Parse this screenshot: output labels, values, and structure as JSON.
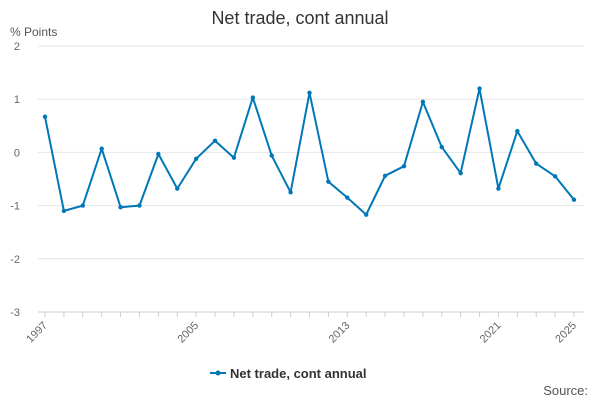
{
  "chart_data": {
    "type": "line",
    "title": "Net trade, cont annual",
    "ylabel": "% Points",
    "xlabel": "",
    "x": [
      1997,
      1998,
      1999,
      2000,
      2001,
      2002,
      2003,
      2004,
      2005,
      2006,
      2007,
      2008,
      2009,
      2010,
      2011,
      2012,
      2013,
      2014,
      2015,
      2016,
      2017,
      2018,
      2019,
      2020,
      2021,
      2022,
      2023,
      2024,
      2025
    ],
    "x_tick_labels": [
      "1997",
      "2005",
      "2013",
      "2021",
      "2025"
    ],
    "ylim": [
      -3,
      2
    ],
    "y_ticks": [
      2,
      1,
      0,
      -1,
      -2,
      -3
    ],
    "grid": "horizontal",
    "legend_position": "bottom",
    "series": [
      {
        "name": "Net trade, cont annual",
        "color": "#0077b6",
        "values": [
          0.67,
          -1.1,
          -1.0,
          0.07,
          -1.03,
          -1.0,
          -0.03,
          -0.68,
          -0.12,
          0.22,
          -0.1,
          1.03,
          -0.06,
          -0.75,
          1.12,
          -0.55,
          -0.85,
          -1.17,
          -0.44,
          -0.26,
          0.95,
          0.1,
          -0.39,
          1.2,
          -0.68,
          0.4,
          -0.21,
          -0.45,
          -0.89
        ]
      }
    ]
  },
  "footer": {
    "source_label": "Source:"
  }
}
